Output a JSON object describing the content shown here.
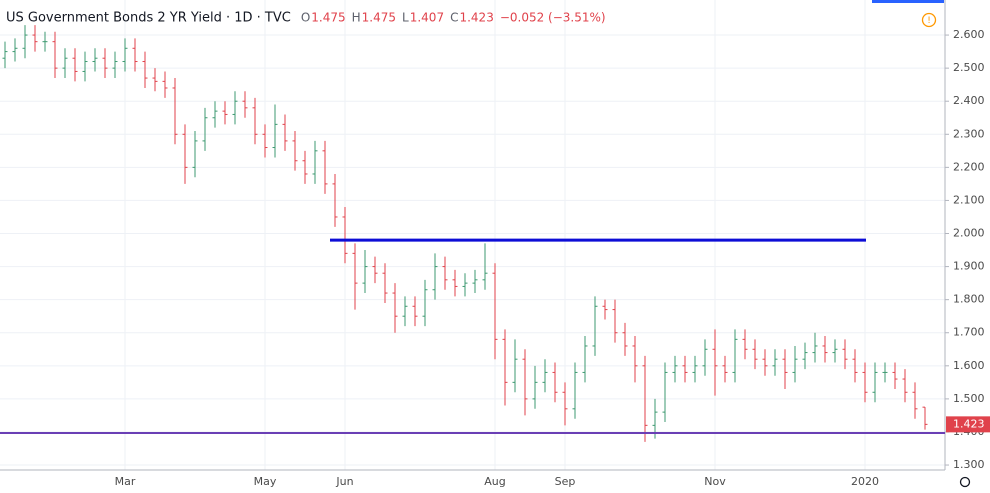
{
  "chart_data": {
    "type": "ohlc",
    "title": "US Government Bonds 2 YR Yield · 1D · TVC",
    "ohlc_legend": [
      {
        "label": "O",
        "value": "1.475"
      },
      {
        "label": "H",
        "value": "1.475"
      },
      {
        "label": "L",
        "value": "1.407"
      },
      {
        "label": "C",
        "value": "1.423"
      }
    ],
    "change": "−0.052 (−3.51%)",
    "last_price": {
      "value": 1.423,
      "label": "1.423"
    },
    "up_color": "#3d9970",
    "down_color": "#e0424b",
    "categories": [
      null,
      null,
      null,
      null,
      null,
      null,
      null,
      null,
      null,
      null,
      null,
      null,
      "Mar",
      null,
      null,
      null,
      null,
      null,
      null,
      null,
      null,
      null,
      null,
      null,
      null,
      null,
      "May",
      null,
      null,
      null,
      null,
      null,
      null,
      null,
      "Jun",
      null,
      null,
      null,
      null,
      null,
      null,
      null,
      null,
      null,
      null,
      null,
      null,
      null,
      null,
      "Aug",
      null,
      null,
      null,
      null,
      null,
      null,
      "Sep",
      null,
      null,
      null,
      null,
      null,
      null,
      null,
      null,
      null,
      null,
      null,
      null,
      null,
      null,
      "Nov",
      null,
      null,
      null,
      null,
      null,
      null,
      null,
      null,
      null,
      null,
      null,
      null,
      null,
      null,
      "2020",
      null,
      null,
      null,
      null,
      null,
      null
    ],
    "open": [
      2.53,
      2.55,
      2.56,
      2.6,
      2.58,
      2.58,
      2.5,
      2.53,
      2.49,
      2.52,
      2.53,
      2.5,
      2.52,
      2.56,
      2.52,
      2.47,
      2.46,
      2.44,
      2.3,
      2.2,
      2.28,
      2.35,
      2.37,
      2.36,
      2.4,
      2.38,
      2.3,
      2.26,
      2.33,
      2.28,
      2.22,
      2.18,
      2.25,
      2.15,
      2.05,
      1.94,
      1.85,
      1.9,
      1.88,
      1.82,
      1.75,
      1.78,
      1.75,
      1.83,
      1.9,
      1.86,
      1.84,
      1.85,
      1.86,
      1.88,
      1.68,
      1.55,
      1.62,
      1.5,
      1.55,
      1.58,
      1.52,
      1.47,
      1.58,
      1.66,
      1.78,
      1.77,
      1.7,
      1.66,
      1.6,
      1.42,
      1.46,
      1.58,
      1.6,
      1.58,
      1.6,
      1.65,
      1.6,
      1.58,
      1.68,
      1.65,
      1.62,
      1.6,
      1.62,
      1.58,
      1.62,
      1.64,
      1.66,
      1.64,
      1.65,
      1.62,
      1.58,
      1.52,
      1.58,
      1.58,
      1.56,
      1.52,
      1.475
    ],
    "high": [
      2.58,
      2.59,
      2.63,
      2.63,
      2.61,
      2.61,
      2.56,
      2.56,
      2.55,
      2.56,
      2.56,
      2.55,
      2.59,
      2.59,
      2.55,
      2.5,
      2.49,
      2.47,
      2.33,
      2.31,
      2.38,
      2.4,
      2.4,
      2.43,
      2.43,
      2.41,
      2.33,
      2.39,
      2.36,
      2.31,
      2.25,
      2.28,
      2.28,
      2.18,
      2.08,
      1.97,
      1.95,
      1.93,
      1.91,
      1.85,
      1.81,
      1.81,
      1.86,
      1.94,
      1.93,
      1.89,
      1.88,
      1.89,
      1.97,
      1.91,
      1.71,
      1.68,
      1.65,
      1.6,
      1.62,
      1.61,
      1.55,
      1.61,
      1.69,
      1.81,
      1.8,
      1.8,
      1.73,
      1.69,
      1.63,
      1.5,
      1.61,
      1.63,
      1.63,
      1.63,
      1.68,
      1.71,
      1.63,
      1.71,
      1.71,
      1.68,
      1.65,
      1.65,
      1.65,
      1.66,
      1.67,
      1.7,
      1.69,
      1.68,
      1.68,
      1.65,
      1.61,
      1.61,
      1.61,
      1.61,
      1.59,
      1.55,
      1.475
    ],
    "low": [
      2.5,
      2.52,
      2.53,
      2.55,
      2.55,
      2.47,
      2.47,
      2.46,
      2.46,
      2.49,
      2.47,
      2.47,
      2.49,
      2.49,
      2.44,
      2.43,
      2.41,
      2.27,
      2.15,
      2.17,
      2.25,
      2.32,
      2.33,
      2.33,
      2.35,
      2.27,
      2.23,
      2.23,
      2.25,
      2.19,
      2.15,
      2.15,
      2.12,
      2.02,
      1.91,
      1.77,
      1.82,
      1.85,
      1.79,
      1.7,
      1.72,
      1.72,
      1.72,
      1.8,
      1.83,
      1.81,
      1.81,
      1.82,
      1.83,
      1.62,
      1.48,
      1.52,
      1.45,
      1.47,
      1.52,
      1.49,
      1.42,
      1.44,
      1.55,
      1.63,
      1.74,
      1.67,
      1.63,
      1.55,
      1.37,
      1.38,
      1.43,
      1.55,
      1.55,
      1.55,
      1.57,
      1.51,
      1.55,
      1.55,
      1.62,
      1.59,
      1.57,
      1.57,
      1.53,
      1.55,
      1.59,
      1.61,
      1.61,
      1.61,
      1.59,
      1.55,
      1.49,
      1.49,
      1.55,
      1.53,
      1.49,
      1.44,
      1.407
    ],
    "close": [
      2.55,
      2.56,
      2.6,
      2.58,
      2.58,
      2.5,
      2.53,
      2.49,
      2.52,
      2.53,
      2.5,
      2.52,
      2.56,
      2.52,
      2.47,
      2.46,
      2.44,
      2.3,
      2.2,
      2.28,
      2.35,
      2.37,
      2.36,
      2.4,
      2.38,
      2.3,
      2.26,
      2.33,
      2.28,
      2.22,
      2.18,
      2.25,
      2.15,
      2.05,
      1.94,
      1.85,
      1.9,
      1.88,
      1.82,
      1.75,
      1.78,
      1.75,
      1.83,
      1.9,
      1.86,
      1.84,
      1.85,
      1.86,
      1.88,
      1.68,
      1.55,
      1.62,
      1.5,
      1.55,
      1.58,
      1.52,
      1.47,
      1.58,
      1.66,
      1.78,
      1.77,
      1.7,
      1.66,
      1.6,
      1.42,
      1.46,
      1.58,
      1.6,
      1.58,
      1.6,
      1.65,
      1.6,
      1.58,
      1.68,
      1.65,
      1.62,
      1.6,
      1.62,
      1.58,
      1.62,
      1.64,
      1.66,
      1.64,
      1.65,
      1.62,
      1.58,
      1.52,
      1.58,
      1.58,
      1.56,
      1.52,
      1.47,
      1.423
    ],
    "lines": [
      {
        "value": 1.98,
        "color": "#0d0dd6"
      },
      {
        "value": 1.397,
        "color": "#6a3fb5"
      }
    ],
    "ylim": [
      1.285,
      2.706
    ],
    "yticks": [
      {
        "value": 1.3,
        "label": "1.300"
      },
      {
        "value": 1.4,
        "label": "1.400"
      },
      {
        "value": 1.5,
        "label": "1.500"
      },
      {
        "value": 1.6,
        "label": "1.600"
      },
      {
        "value": 1.7,
        "label": "1.700"
      },
      {
        "value": 1.8,
        "label": "1.800"
      },
      {
        "value": 1.9,
        "label": "1.900"
      },
      {
        "value": 2.0,
        "label": "2.000"
      },
      {
        "value": 2.1,
        "label": "2.100"
      },
      {
        "value": 2.2,
        "label": "2.200"
      },
      {
        "value": 2.3,
        "label": "2.300"
      },
      {
        "value": 2.4,
        "label": "2.400"
      },
      {
        "value": 2.5,
        "label": "2.500"
      },
      {
        "value": 2.6,
        "label": "2.600"
      }
    ],
    "grid": true
  }
}
